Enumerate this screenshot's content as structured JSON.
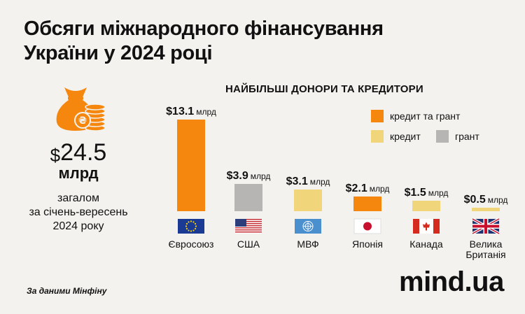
{
  "title": {
    "line1": "Обсяги міжнародного фінансування",
    "line2": "України у 2024 році"
  },
  "total": {
    "dollar": "$",
    "value": "24.5",
    "unit": "млрд",
    "desc_line1": "загалом",
    "desc_line2": "за січень-вересень",
    "desc_line3": "2024 року"
  },
  "colors": {
    "credit_and_grant": "#f5870f",
    "credit": "#f0d57a",
    "grant": "#b6b5b4",
    "background": "#f4f2ee"
  },
  "legend": {
    "credit_and_grant": "кредит та грант",
    "credit": "кредит",
    "grant": "грант"
  },
  "source": "За даними Мінфіну",
  "logo": "mind.ua",
  "chart_data": {
    "type": "bar",
    "title": "НАЙБІЛЬШІ ДОНОРИ ТА КРЕДИТОРИ",
    "unit": "млрд",
    "legend_position": "top-right",
    "grid": false,
    "ylim": [
      0,
      13.1
    ],
    "categories": [
      "Євросоюз",
      "США",
      "МВФ",
      "Японія",
      "Канада",
      "Велика Британія"
    ],
    "values": [
      13.1,
      3.9,
      3.1,
      2.1,
      1.5,
      0.5
    ],
    "value_labels": [
      "$13.1",
      "$3.9",
      "$3.1",
      "$2.1",
      "$1.5",
      "$0.5"
    ],
    "types": [
      "credit_and_grant",
      "grant",
      "credit",
      "credit_and_grant",
      "credit",
      "credit"
    ],
    "flags": [
      "eu-flag-icon",
      "usa-flag-icon",
      "imf-logo-icon",
      "japan-flag-icon",
      "canada-flag-icon",
      "uk-flag-icon"
    ]
  }
}
